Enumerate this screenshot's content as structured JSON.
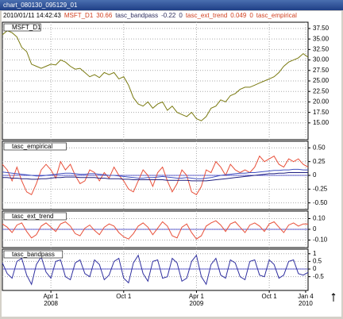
{
  "window": {
    "title": "chart_080130_095129_01"
  },
  "header": {
    "items": [
      {
        "text": "2010/01/11 14:42:43",
        "color": "#000000"
      },
      {
        "text": "MSFT_D1",
        "color": "#d04020"
      },
      {
        "text": "30.66",
        "color": "#d04020"
      },
      {
        "text": "tasc_bandpass",
        "color": "#303060"
      },
      {
        "text": "-0.22",
        "color": "#303060"
      },
      {
        "text": "0",
        "color": "#303060"
      },
      {
        "text": "tasc_ext_trend",
        "color": "#d04020"
      },
      {
        "text": "0.049",
        "color": "#d04020"
      },
      {
        "text": "0",
        "color": "#d04020"
      },
      {
        "text": "tasc_empirical",
        "color": "#d04020"
      }
    ]
  },
  "chart_data": [
    {
      "type": "line",
      "title": "MSFT_D1",
      "xlim": [
        0,
        63
      ],
      "ylim": [
        11,
        39
      ],
      "grid": true,
      "yticks": [
        {
          "value": 15,
          "label": "15.00"
        },
        {
          "value": 17.5,
          "label": "17.50"
        },
        {
          "value": 20,
          "label": "20.00"
        },
        {
          "value": 22.5,
          "label": "22.50"
        },
        {
          "value": 25,
          "label": "25.00"
        },
        {
          "value": 27.5,
          "label": "27.50"
        },
        {
          "value": 30,
          "label": "30.00"
        },
        {
          "value": 32.5,
          "label": "32.50"
        },
        {
          "value": 35,
          "label": "35.00"
        },
        {
          "value": 37.5,
          "label": "37.50"
        }
      ],
      "series": [
        {
          "color": "#7a7a10",
          "values": [
            36,
            37,
            36.5,
            35.5,
            33,
            32,
            29,
            28.5,
            28,
            28.5,
            29,
            28.8,
            30,
            29.5,
            28.5,
            27.8,
            28,
            27,
            26,
            26.5,
            25.8,
            27,
            26.5,
            27,
            25.5,
            26,
            24,
            21,
            19.5,
            19,
            20,
            18.5,
            19.5,
            20,
            18,
            19,
            17.5,
            17,
            16.5,
            17.5,
            16,
            15.5,
            16.5,
            18.5,
            19,
            20.5,
            20,
            21.5,
            22,
            23,
            23.5,
            23.5,
            24,
            24.5,
            25,
            25.5,
            26,
            27,
            28.5,
            29.5,
            30,
            30.5,
            31.5,
            30.66
          ]
        }
      ]
    },
    {
      "type": "line",
      "title": "tasc_empirical",
      "xlim": [
        0,
        63
      ],
      "ylim": [
        -0.62,
        0.62
      ],
      "grid": true,
      "yticks": [
        {
          "value": -0.5,
          "label": "-0.50"
        },
        -0.25,
        0,
        0.25,
        {
          "value": 0.5,
          "label": "0.50"
        }
      ],
      "series": [
        {
          "color": "#e8503a",
          "values": [
            0.2,
            0.1,
            -0.1,
            0.15,
            -0.1,
            -0.3,
            -0.35,
            -0.15,
            0.1,
            0.2,
            0.1,
            -0.05,
            0.25,
            0.1,
            0.2,
            0,
            -0.15,
            -0.1,
            0.1,
            0.05,
            -0.1,
            0.05,
            -0.05,
            0.15,
            0,
            -0.1,
            -0.25,
            -0.3,
            -0.1,
            0.1,
            0,
            -0.2,
            0.05,
            0.15,
            -0.1,
            -0.3,
            -0.15,
            0.1,
            0,
            -0.3,
            -0.35,
            -0.2,
            0.1,
            0.05,
            0.25,
            0.15,
            0,
            0.2,
            0.1,
            0.05,
            0.1,
            0.05,
            0.15,
            0.35,
            0.25,
            0.3,
            0.35,
            0.2,
            0.15,
            0.3,
            0.25,
            0.3,
            0.2,
            0.15
          ]
        },
        {
          "color": "#4050c0",
          "values": [
            0.06,
            0.05,
            0.04,
            0.03,
            0.02,
            0.01,
            0,
            -0.01,
            -0.01,
            0,
            0.01,
            0.02,
            0.03,
            0.04,
            0.04,
            0.03,
            0.02,
            0.02,
            0.03,
            0.03,
            0.02,
            0.01,
            0,
            0,
            -0.01,
            -0.02,
            -0.03,
            -0.04,
            -0.05,
            -0.05,
            -0.04,
            -0.04,
            -0.03,
            -0.02,
            -0.03,
            -0.04,
            -0.05,
            -0.05,
            -0.04,
            -0.05,
            -0.06,
            -0.06,
            -0.05,
            -0.04,
            -0.02,
            0,
            0.01,
            0.02,
            0.03,
            0.04,
            0.04,
            0.05,
            0.05,
            0.06,
            0.07,
            0.08,
            0.09,
            0.09,
            0.1,
            0.1,
            0.11,
            0.11,
            0.1,
            0.1
          ]
        },
        {
          "color": "#202080",
          "values": [
            -0.04,
            -0.04,
            -0.05,
            -0.05,
            -0.06,
            -0.06,
            -0.07,
            -0.07,
            -0.06,
            -0.06,
            -0.05,
            -0.04,
            -0.04,
            -0.03,
            -0.03,
            -0.03,
            -0.04,
            -0.04,
            -0.04,
            -0.04,
            -0.05,
            -0.05,
            -0.06,
            -0.06,
            -0.06,
            -0.07,
            -0.07,
            -0.08,
            -0.08,
            -0.08,
            -0.08,
            -0.08,
            -0.08,
            -0.08,
            -0.09,
            -0.09,
            -0.09,
            -0.09,
            -0.09,
            -0.1,
            -0.1,
            -0.1,
            -0.1,
            -0.09,
            -0.08,
            -0.07,
            -0.06,
            -0.05,
            -0.04,
            -0.03,
            -0.02,
            -0.01,
            0,
            0.01,
            0.02,
            0.03,
            0.03,
            0.04,
            0.04,
            0.05,
            0.05,
            0.05,
            0.05,
            0.05
          ]
        }
      ]
    },
    {
      "type": "line",
      "title": "tasc_ext_trend",
      "xlim": [
        0,
        63
      ],
      "ylim": [
        -0.17,
        0.17
      ],
      "grid": true,
      "yticks": [
        {
          "value": -0.1,
          "label": "-0.10"
        },
        0,
        {
          "value": 0.1,
          "label": "0.10"
        }
      ],
      "series": [
        {
          "color": "#e8503a",
          "values": [
            0.05,
            0.02,
            -0.03,
            0.04,
            0.06,
            -0.02,
            -0.08,
            -0.05,
            0.03,
            0.06,
            0.02,
            -0.02,
            0.05,
            0.07,
            0.03,
            -0.04,
            -0.06,
            0.01,
            0.04,
            -0.01,
            -0.05,
            0.02,
            0.05,
            0.03,
            -0.03,
            -0.07,
            -0.09,
            -0.04,
            0.03,
            0.06,
            0.02,
            -0.05,
            0.01,
            0.07,
            0.03,
            -0.06,
            -0.08,
            0.02,
            0.05,
            -0.03,
            -0.09,
            -0.06,
            0.03,
            0.06,
            0.08,
            0.04,
            -0.02,
            0.05,
            0.07,
            0.02,
            -0.03,
            0.04,
            0.06,
            0.03,
            -0.02,
            0.05,
            0.07,
            0.02,
            -0.03,
            0.04,
            0.06,
            0.03,
            0.05,
            0.049
          ]
        }
      ]
    },
    {
      "type": "line",
      "title": "tasc_bandpass",
      "xlim": [
        0,
        63
      ],
      "ylim": [
        -1.4,
        1.3
      ],
      "grid": true,
      "yticks": [
        -0.5,
        0,
        0.5,
        1
      ],
      "xticks": [
        {
          "value": 10,
          "label": "Apr 1",
          "sublabel": "2008"
        },
        {
          "value": 25,
          "label": "Oct 1"
        },
        {
          "value": 40,
          "label": "Apr 1",
          "sublabel": "2009"
        },
        {
          "value": 55,
          "label": "Oct 1"
        },
        {
          "value": 62.5,
          "label": "Jan 4",
          "sublabel": "2010"
        }
      ],
      "series": [
        {
          "color": "#3030a0",
          "values": [
            0.4,
            -0.3,
            -0.6,
            0.5,
            0.7,
            -0.4,
            -1.0,
            0.3,
            0.8,
            -0.2,
            -0.6,
            0.5,
            0.6,
            -0.5,
            -0.7,
            0.4,
            0.6,
            -0.3,
            -0.5,
            0.6,
            0.3,
            -0.7,
            -0.4,
            0.5,
            0.7,
            -0.6,
            -0.9,
            0.4,
            0.9,
            -0.3,
            -0.8,
            0.5,
            0.6,
            -0.6,
            -0.5,
            0.7,
            0.4,
            -0.8,
            -0.6,
            0.5,
            0.9,
            -0.5,
            -1.0,
            0.3,
            0.7,
            -0.4,
            -0.6,
            0.6,
            0.4,
            -0.5,
            -0.7,
            0.5,
            0.6,
            -0.4,
            -0.5,
            0.6,
            0.3,
            -0.6,
            -0.4,
            0.5,
            0.6,
            -0.3,
            -0.4,
            -0.22
          ]
        }
      ]
    }
  ]
}
